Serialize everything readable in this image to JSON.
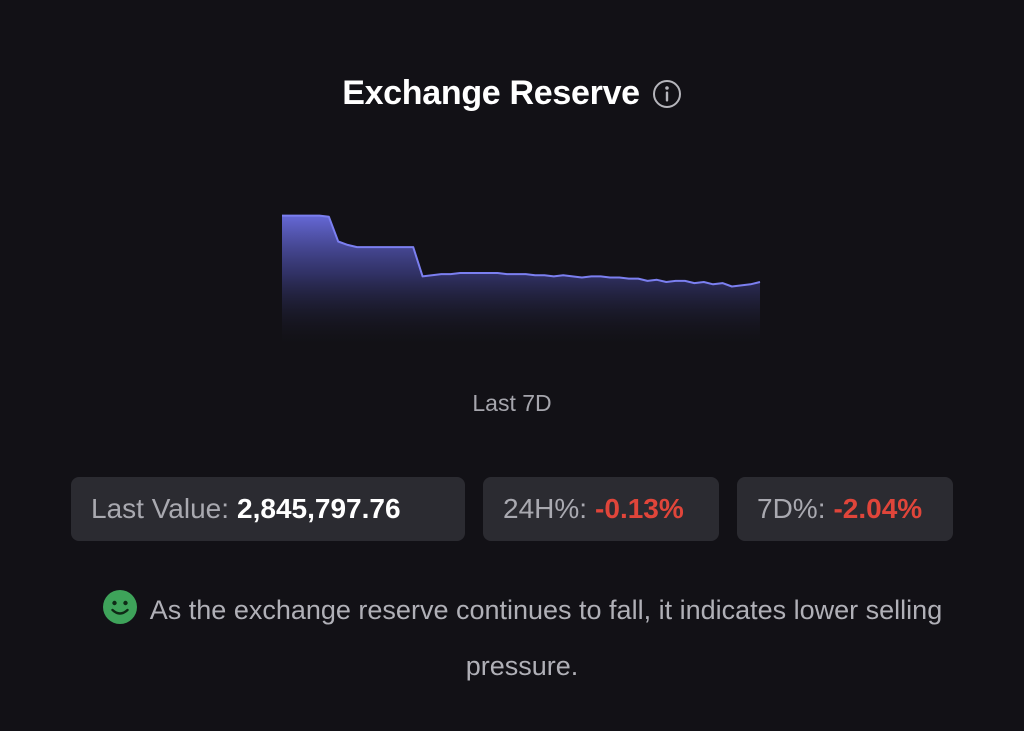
{
  "header": {
    "title": "Exchange Reserve",
    "info_icon": "info-circle-icon"
  },
  "chart_data": {
    "type": "area",
    "title": "",
    "xlabel": "",
    "ylabel": "",
    "series": [
      {
        "values": [
          2.905,
          2.905,
          2.905,
          2.905,
          2.905,
          2.904,
          2.882,
          2.879,
          2.877,
          2.877,
          2.877,
          2.877,
          2.877,
          2.877,
          2.877,
          2.851,
          2.852,
          2.853,
          2.853,
          2.854,
          2.854,
          2.854,
          2.854,
          2.854,
          2.853,
          2.853,
          2.853,
          2.852,
          2.852,
          2.851,
          2.852,
          2.851,
          2.85,
          2.851,
          2.851,
          2.85,
          2.85,
          2.849,
          2.849,
          2.847,
          2.848,
          2.846,
          2.847,
          2.847,
          2.845,
          2.846,
          2.844,
          2.845,
          2.842,
          2.843,
          2.844,
          2.846
        ]
      }
    ],
    "line_color": "#7b7ff0",
    "fill_color": "#5f62c8",
    "grid": false,
    "legend": "none"
  },
  "period_label": "Last 7D",
  "stats": {
    "last_value_label": "Last Value:",
    "last_value": "2,845,797.76",
    "change_24h_label": "24H%:",
    "change_24h": "-0.13%",
    "change_7d_label": "7D%:",
    "change_7d": "-2.04%",
    "negative_color": "#e0453a"
  },
  "insight": {
    "icon": "smile-face-icon",
    "icon_color": "#3ea35a",
    "text": "As the exchange reserve continues to fall, it indicates lower selling pressure."
  }
}
